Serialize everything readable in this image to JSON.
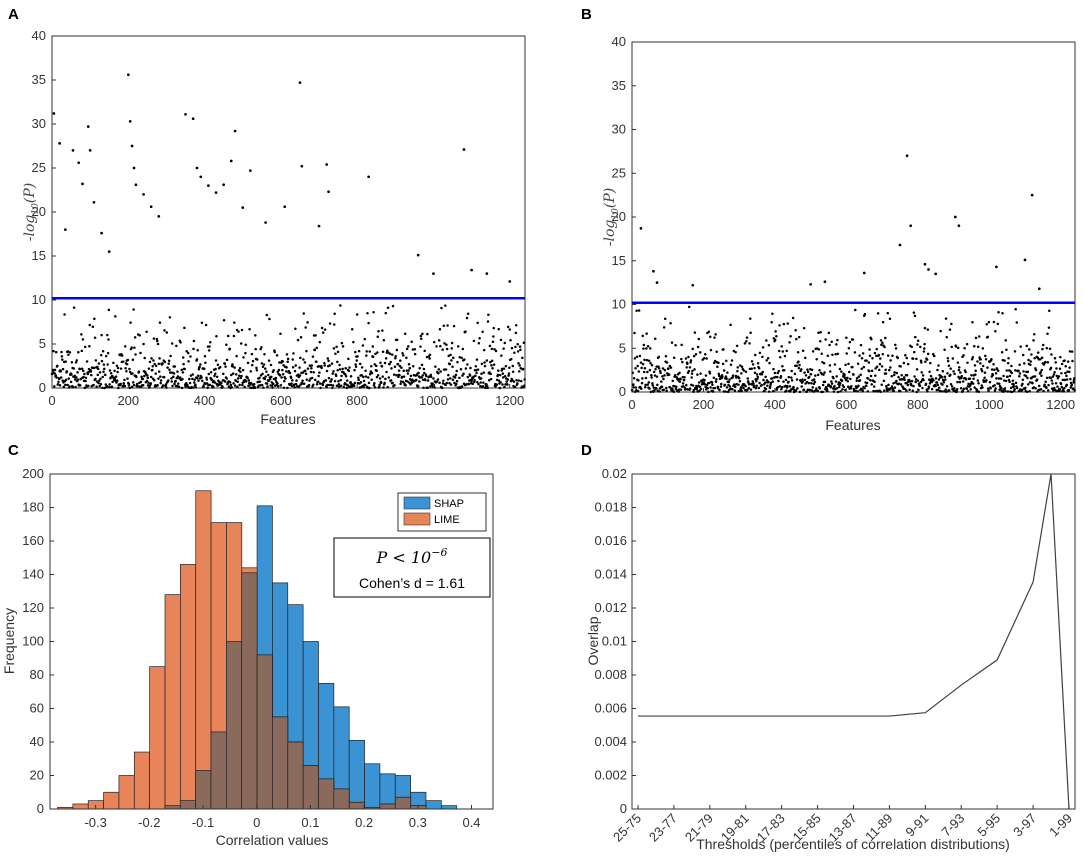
{
  "panels": {
    "A": {
      "letter": "A"
    },
    "B": {
      "letter": "B"
    },
    "C": {
      "letter": "C"
    },
    "D": {
      "letter": "D"
    }
  },
  "chart_data": [
    {
      "id": "A",
      "type": "scatter",
      "title": "",
      "xlabel": "Features",
      "ylabel": "-log10(P)",
      "ylabel_main": "-log",
      "ylabel_sub": "10",
      "ylabel_tail": "(P)",
      "xlim": [
        0,
        1240
      ],
      "ylim": [
        0,
        40
      ],
      "xticks": [
        0,
        200,
        400,
        600,
        800,
        1000,
        1200
      ],
      "yticks": [
        0,
        5,
        10,
        15,
        20,
        25,
        30,
        35,
        40
      ],
      "threshold": 10.2,
      "threshold_color": "#0000ff",
      "n_features": 1240,
      "seed": 11,
      "highlighted_points": [
        [
          5,
          31.2
        ],
        [
          20,
          27.8
        ],
        [
          35,
          18.0
        ],
        [
          55,
          27.0
        ],
        [
          70,
          25.6
        ],
        [
          80,
          23.2
        ],
        [
          95,
          29.7
        ],
        [
          100,
          27.0
        ],
        [
          110,
          21.1
        ],
        [
          130,
          17.6
        ],
        [
          150,
          15.5
        ],
        [
          200,
          35.6
        ],
        [
          205,
          30.3
        ],
        [
          210,
          27.5
        ],
        [
          215,
          25.0
        ],
        [
          220,
          23.1
        ],
        [
          240,
          22.0
        ],
        [
          260,
          20.6
        ],
        [
          280,
          19.5
        ],
        [
          350,
          31.1
        ],
        [
          370,
          30.6
        ],
        [
          380,
          25.0
        ],
        [
          390,
          24.0
        ],
        [
          410,
          23.0
        ],
        [
          430,
          22.2
        ],
        [
          450,
          23.1
        ],
        [
          470,
          25.8
        ],
        [
          480,
          29.2
        ],
        [
          500,
          20.5
        ],
        [
          520,
          24.7
        ],
        [
          560,
          18.8
        ],
        [
          610,
          20.6
        ],
        [
          650,
          34.7
        ],
        [
          655,
          25.2
        ],
        [
          700,
          18.4
        ],
        [
          720,
          25.4
        ],
        [
          725,
          22.3
        ],
        [
          830,
          24.0
        ],
        [
          960,
          15.1
        ],
        [
          1000,
          13.0
        ],
        [
          1080,
          27.1
        ],
        [
          1100,
          13.4
        ],
        [
          1140,
          13.0
        ],
        [
          1200,
          12.1
        ]
      ],
      "point_color": "#000000"
    },
    {
      "id": "B",
      "type": "scatter",
      "title": "",
      "xlabel": "Features",
      "ylabel": "-log10(P)",
      "ylabel_main": "-log",
      "ylabel_sub": "10",
      "ylabel_tail": "(P)",
      "xlim": [
        0,
        1240
      ],
      "ylim": [
        0,
        40
      ],
      "xticks": [
        0,
        200,
        400,
        600,
        800,
        1000,
        1200
      ],
      "yticks": [
        0,
        5,
        10,
        15,
        20,
        25,
        30,
        35,
        40
      ],
      "threshold": 10.2,
      "threshold_color": "#0000ff",
      "n_features": 1240,
      "seed": 23,
      "highlighted_points": [
        [
          25,
          18.7
        ],
        [
          60,
          13.8
        ],
        [
          70,
          12.5
        ],
        [
          170,
          12.2
        ],
        [
          500,
          12.3
        ],
        [
          540,
          12.6
        ],
        [
          650,
          13.6
        ],
        [
          750,
          16.8
        ],
        [
          770,
          27.0
        ],
        [
          780,
          19.0
        ],
        [
          820,
          14.6
        ],
        [
          830,
          14.0
        ],
        [
          850,
          13.5
        ],
        [
          905,
          20.0
        ],
        [
          915,
          19.0
        ],
        [
          1020,
          14.3
        ],
        [
          1100,
          15.1
        ],
        [
          1120,
          22.5
        ],
        [
          1140,
          11.8
        ]
      ],
      "point_color": "#000000"
    },
    {
      "id": "C",
      "type": "bar",
      "title": "",
      "xlabel": "Correlation values",
      "ylabel": "Frequency",
      "xlim": [
        -0.385,
        0.44
      ],
      "ylim": [
        0,
        200
      ],
      "xticks": [
        -0.3,
        -0.2,
        -0.1,
        0,
        0.1,
        0.2,
        0.3,
        0.4
      ],
      "xtick_labels": [
        "-0.3",
        "-0.2",
        "-0.1",
        "0",
        "0.1",
        "0.2",
        "0.3",
        "0.4"
      ],
      "yticks": [
        0,
        20,
        40,
        60,
        80,
        100,
        120,
        140,
        160,
        180,
        200
      ],
      "bin_width": 0.0286,
      "series": [
        {
          "name": "SHAP",
          "color": "#3b93d3",
          "bin_start": -0.171,
          "values": [
            2,
            5,
            23,
            46,
            100,
            141,
            181,
            135,
            122,
            100,
            75,
            61,
            41,
            27,
            21,
            20,
            10,
            5,
            2
          ]
        },
        {
          "name": "LIME",
          "color": "#e8845a",
          "bin_start": -0.371,
          "values": [
            1,
            3,
            5,
            10,
            20,
            34,
            85,
            128,
            146,
            190,
            171,
            171,
            144,
            92,
            55,
            40,
            26,
            18,
            12,
            4,
            1,
            3,
            7,
            2
          ]
        }
      ],
      "overlap_color": "#8a6a5c",
      "annotation": {
        "p_text": "P < 10",
        "p_exp": "−6",
        "effect_text": "Cohen’s d = 1.61"
      }
    },
    {
      "id": "D",
      "type": "line",
      "title": "",
      "xlabel": "Thresholds (percentiles of correlation distributions)",
      "ylabel": "Overlap",
      "categories": [
        "25-75",
        "23-77",
        "21-79",
        "19-81",
        "17-83",
        "15-85",
        "13-87",
        "11-89",
        "9-91",
        "7-93",
        "5-95",
        "3-97",
        "1-99"
      ],
      "x": [
        0,
        1,
        2,
        3,
        4,
        5,
        6,
        7,
        8,
        9,
        10,
        11,
        11.5,
        12
      ],
      "y": [
        0.00555,
        0.00555,
        0.00555,
        0.00555,
        0.00555,
        0.00555,
        0.00555,
        0.00555,
        0.00575,
        0.0074,
        0.0089,
        0.01355,
        0.02,
        0.0
      ],
      "ylim": [
        0,
        0.02
      ],
      "yticks": [
        0,
        0.002,
        0.004,
        0.006,
        0.008,
        0.01,
        0.012,
        0.014,
        0.016,
        0.018,
        0.02
      ],
      "ytick_labels": [
        "0",
        "0.002",
        "0.004",
        "0.006",
        "0.008",
        "0.01",
        "0.012",
        "0.014",
        "0.016",
        "0.018",
        "0.02"
      ],
      "line_color": "#404040"
    }
  ]
}
